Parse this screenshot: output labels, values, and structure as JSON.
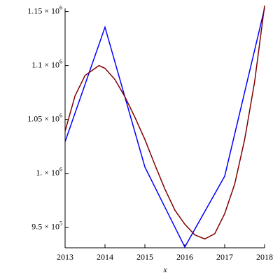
{
  "chart_data": {
    "type": "line",
    "x_label": "x",
    "xlim": [
      2013,
      2018
    ],
    "ylim": [
      931000,
      1153000
    ],
    "xticks": [
      2013,
      2014,
      2015,
      2016,
      2017,
      2018
    ],
    "yticks": [
      {
        "value": 950000,
        "label": "9.5 × 10",
        "exponent": "5"
      },
      {
        "value": 1000000,
        "label": "1. × 10",
        "exponent": "6"
      },
      {
        "value": 1050000,
        "label": "1.05 × 10",
        "exponent": "6"
      },
      {
        "value": 1100000,
        "label": "1.1 × 10",
        "exponent": "6"
      },
      {
        "value": 1150000,
        "label": "1.15 × 10",
        "exponent": "6"
      }
    ],
    "series": [
      {
        "color": "#0000ff",
        "x": [
          2013,
          2014,
          2015,
          2016,
          2017,
          2018
        ],
        "values": [
          1029400,
          1135600,
          1005900,
          931700,
          997400,
          1153300
        ]
      },
      {
        "color": "#800000",
        "x": [
          2013,
          2013.25,
          2013.5,
          2013.85,
          2014,
          2014.25,
          2014.5,
          2014.75,
          2015,
          2015.25,
          2015.5,
          2015.75,
          2016,
          2016.25,
          2016.5,
          2016.75,
          2017,
          2017.25,
          2017.5,
          2017.75,
          2018
        ],
        "values": [
          1039200,
          1072000,
          1090800,
          1100000,
          1097400,
          1087000,
          1071000,
          1052000,
          1031400,
          1008000,
          985600,
          966000,
          952900,
          943000,
          939200,
          944000,
          962700,
          990000,
          1031400,
          1085000,
          1155600
        ]
      }
    ]
  }
}
